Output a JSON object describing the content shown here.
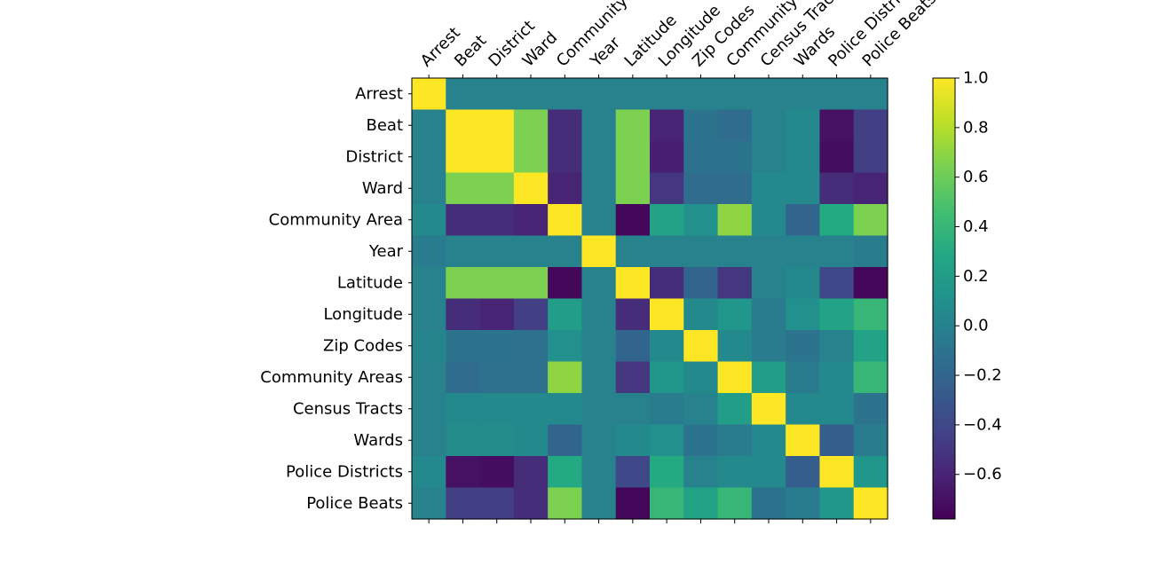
{
  "chart_data": {
    "type": "heatmap",
    "labels": [
      "Arrest",
      "Beat",
      "District",
      "Ward",
      "Community Area",
      "Year",
      "Latitude",
      "Longitude",
      "Zip Codes",
      "Community Areas",
      "Census Tracts",
      "Wards",
      "Police Districts",
      "Police Beats"
    ],
    "x_tick_labels": [
      "Arrest",
      "Beat",
      "District",
      "Ward",
      "Community Area",
      "Year",
      "Latitude",
      "Longitude",
      "Zip Codes",
      "Community Areas",
      "Census Tracts",
      "Wards",
      "Police Districts",
      "Police Beats"
    ],
    "y_tick_labels": [
      "Arrest",
      "Beat",
      "District",
      "Ward",
      "Community Area",
      "Year",
      "Latitude",
      "Longitude",
      "Zip Codes",
      "Community Areas",
      "Census Tracts",
      "Wards",
      "Police Districts",
      "Police Beats"
    ],
    "values": [
      [
        1.0,
        0.0,
        0.0,
        0.0,
        0.0,
        0.0,
        0.0,
        0.0,
        0.0,
        0.0,
        0.0,
        0.0,
        0.0,
        0.0
      ],
      [
        0.0,
        1.0,
        1.0,
        0.65,
        -0.55,
        0.0,
        0.65,
        -0.6,
        -0.1,
        -0.15,
        0.0,
        0.05,
        -0.7,
        -0.45
      ],
      [
        0.0,
        1.0,
        1.0,
        0.65,
        -0.55,
        0.0,
        0.65,
        -0.62,
        -0.1,
        -0.1,
        0.0,
        0.05,
        -0.72,
        -0.45
      ],
      [
        0.0,
        0.65,
        0.65,
        1.0,
        -0.6,
        0.0,
        0.65,
        -0.5,
        -0.15,
        -0.15,
        0.05,
        0.05,
        -0.55,
        -0.6
      ],
      [
        0.05,
        -0.55,
        -0.55,
        -0.6,
        1.0,
        0.0,
        -0.75,
        0.25,
        0.1,
        0.7,
        0.05,
        -0.2,
        0.3,
        0.65
      ],
      [
        -0.05,
        0.0,
        0.0,
        0.0,
        0.0,
        1.0,
        0.0,
        0.0,
        0.0,
        0.0,
        0.0,
        0.0,
        0.0,
        -0.05
      ],
      [
        0.0,
        0.65,
        0.65,
        0.65,
        -0.75,
        0.0,
        1.0,
        -0.55,
        -0.2,
        -0.5,
        0.0,
        0.05,
        -0.4,
        -0.75
      ],
      [
        0.0,
        -0.55,
        -0.6,
        -0.45,
        0.2,
        0.0,
        -0.55,
        1.0,
        0.05,
        0.15,
        -0.05,
        0.1,
        0.25,
        0.4
      ],
      [
        0.02,
        -0.1,
        -0.1,
        -0.12,
        0.1,
        0.0,
        -0.2,
        0.05,
        1.0,
        0.05,
        -0.05,
        -0.1,
        0.0,
        0.25
      ],
      [
        0.0,
        -0.15,
        -0.12,
        -0.12,
        0.7,
        0.0,
        -0.5,
        0.15,
        0.05,
        1.0,
        0.2,
        -0.05,
        0.05,
        0.4
      ],
      [
        0.0,
        0.05,
        0.05,
        0.05,
        0.05,
        0.0,
        0.0,
        -0.05,
        0.0,
        0.2,
        1.0,
        0.05,
        0.05,
        -0.1
      ],
      [
        0.0,
        0.08,
        0.08,
        0.05,
        -0.2,
        0.0,
        0.05,
        0.1,
        -0.1,
        -0.05,
        0.05,
        1.0,
        -0.25,
        -0.05
      ],
      [
        0.05,
        -0.7,
        -0.72,
        -0.55,
        0.3,
        0.0,
        -0.4,
        0.3,
        0.0,
        0.05,
        0.05,
        -0.25,
        1.0,
        0.15
      ],
      [
        0.0,
        -0.45,
        -0.45,
        -0.55,
        0.65,
        0.0,
        -0.75,
        0.4,
        0.25,
        0.4,
        -0.1,
        -0.05,
        0.15,
        1.0
      ]
    ],
    "vmin": -0.78,
    "vmax": 1.0,
    "colormap": "viridis",
    "colorbar_ticks": [
      1.0,
      0.8,
      0.6,
      0.4,
      0.2,
      0.0,
      -0.2,
      -0.4,
      -0.6
    ],
    "colorbar_tick_labels": [
      "1.0",
      "0.8",
      "0.6",
      "0.4",
      "0.2",
      "0.0",
      "−0.2",
      "−0.4",
      "−0.6"
    ],
    "x_tick_rotation_deg": 45,
    "grid": false
  }
}
